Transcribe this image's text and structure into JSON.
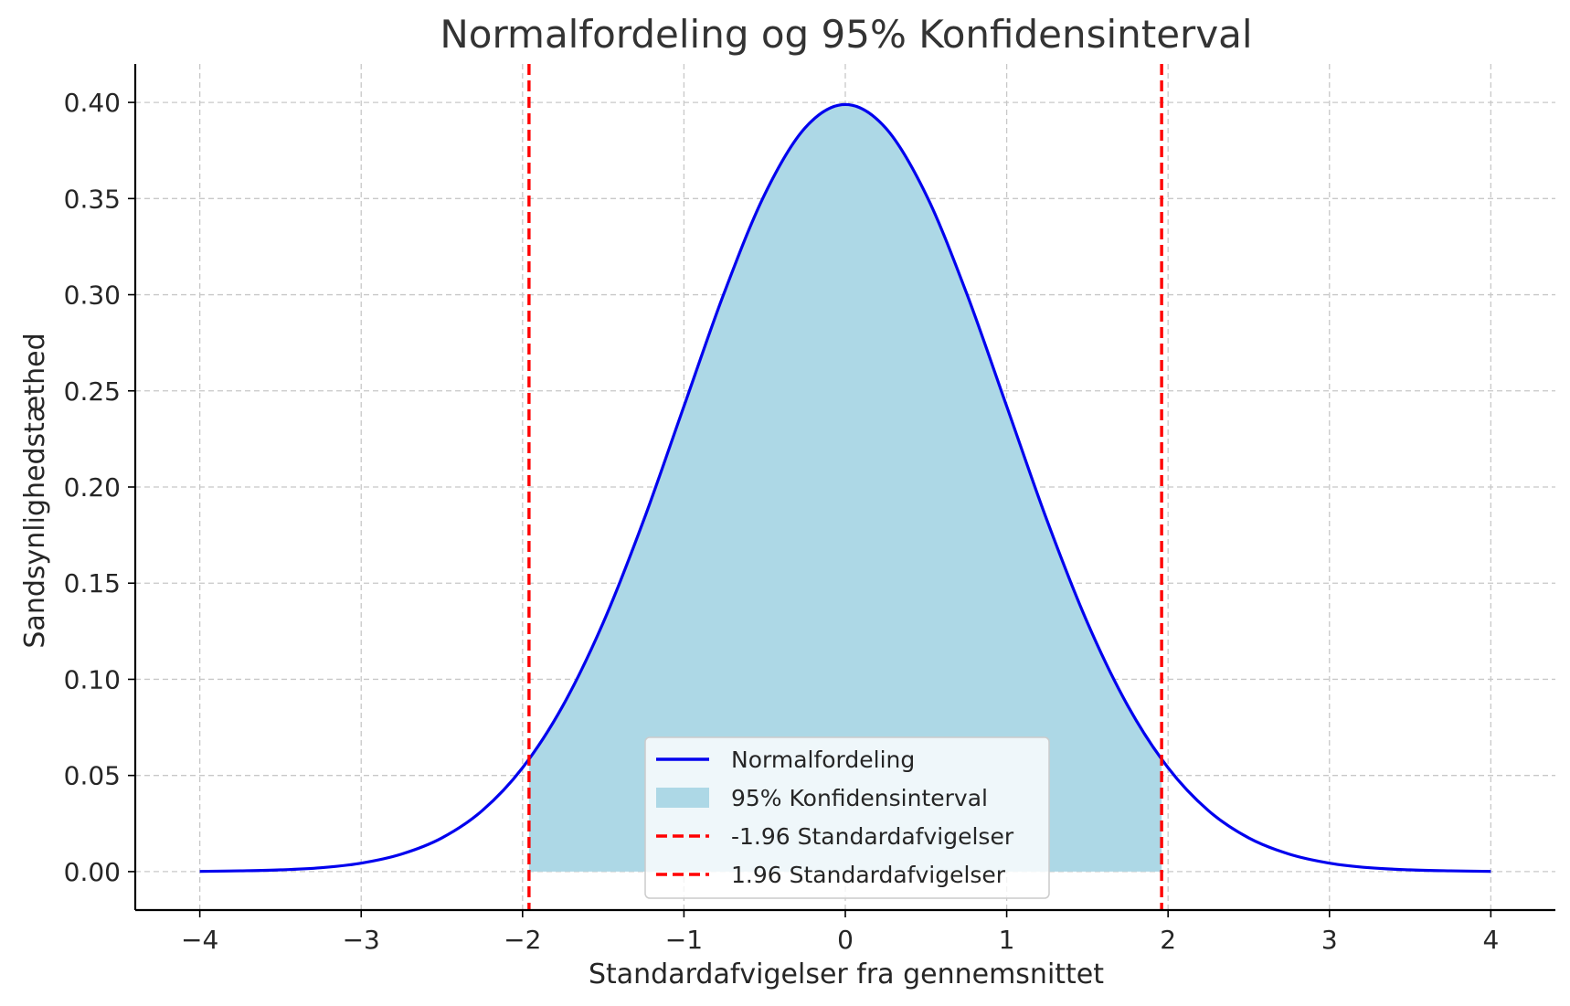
{
  "chart_data": {
    "type": "line",
    "title": "Normalfordeling og 95% Konfidensinterval",
    "xlabel": "Standardafvigelser fra gennemsnittet",
    "ylabel": "Sandsynlighedstæthed",
    "xlim": [
      -4.4,
      4.4
    ],
    "ylim": [
      -0.02,
      0.42
    ],
    "x_ticks": [
      -4,
      -3,
      -2,
      -1,
      0,
      1,
      2,
      3,
      4
    ],
    "x_tick_labels": [
      "−4",
      "−3",
      "−2",
      "−1",
      "0",
      "1",
      "2",
      "3",
      "4"
    ],
    "y_ticks": [
      0.0,
      0.05,
      0.1,
      0.15,
      0.2,
      0.25,
      0.3,
      0.35,
      0.4
    ],
    "y_tick_labels": [
      "0.00",
      "0.05",
      "0.10",
      "0.15",
      "0.20",
      "0.25",
      "0.30",
      "0.35",
      "0.40"
    ],
    "grid": true,
    "series": [
      {
        "name": "Normalfordeling",
        "kind": "line",
        "color": "#0000ee",
        "x": [
          -4.0,
          -3.75,
          -3.5,
          -3.25,
          -3.0,
          -2.75,
          -2.5,
          -2.25,
          -2.0,
          -1.75,
          -1.5,
          -1.25,
          -1.0,
          -0.75,
          -0.5,
          -0.25,
          0.0,
          0.25,
          0.5,
          0.75,
          1.0,
          1.25,
          1.5,
          1.75,
          2.0,
          2.25,
          2.5,
          2.75,
          3.0,
          3.25,
          3.5,
          3.75,
          4.0
        ],
        "y": [
          0.0001,
          0.0004,
          0.0009,
          0.002,
          0.0044,
          0.0091,
          0.0175,
          0.0317,
          0.054,
          0.0863,
          0.1295,
          0.1826,
          0.242,
          0.3011,
          0.3521,
          0.3867,
          0.3989,
          0.3867,
          0.3521,
          0.3011,
          0.242,
          0.1826,
          0.1295,
          0.0863,
          0.054,
          0.0317,
          0.0175,
          0.0091,
          0.0044,
          0.002,
          0.0009,
          0.0004,
          0.0001
        ]
      },
      {
        "name": "95% Konfidensinterval",
        "kind": "area",
        "color": "#add8e6",
        "x": [
          -1.96,
          -1.75,
          -1.5,
          -1.25,
          -1.0,
          -0.75,
          -0.5,
          -0.25,
          0.0,
          0.25,
          0.5,
          0.75,
          1.0,
          1.25,
          1.5,
          1.75,
          1.96
        ],
        "y": [
          0.0584,
          0.0863,
          0.1295,
          0.1826,
          0.242,
          0.3011,
          0.3521,
          0.3867,
          0.3989,
          0.3867,
          0.3521,
          0.3011,
          0.242,
          0.1826,
          0.1295,
          0.0863,
          0.0584
        ]
      },
      {
        "name": "-1.96 Standardafvigelser",
        "kind": "vline",
        "color": "#ff0000",
        "x": -1.96
      },
      {
        "name": "1.96 Standardafvigelser",
        "kind": "vline",
        "color": "#ff0000",
        "x": 1.96
      }
    ],
    "legend": {
      "placement": "lower-center"
    }
  }
}
